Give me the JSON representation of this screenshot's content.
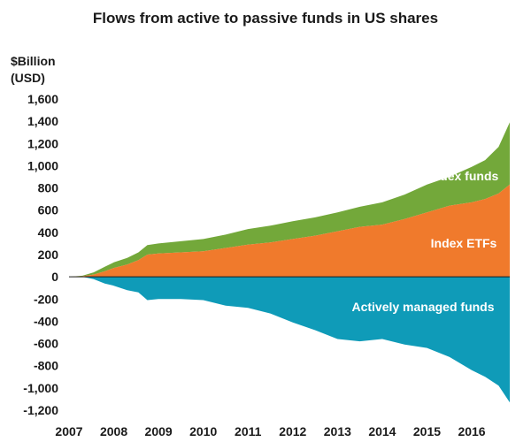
{
  "chart_data": {
    "type": "area",
    "title": "Flows from active to passive funds in US shares",
    "ylabel_lines": [
      "$Billion",
      "(USD)"
    ],
    "xlabel": "",
    "ylim": [
      -1200,
      1600
    ],
    "yticks": [
      1600,
      1400,
      1200,
      1000,
      800,
      600,
      400,
      200,
      0,
      -200,
      -400,
      -600,
      -800,
      -1000,
      -1200
    ],
    "ytick_labels": [
      "1,600",
      "1,400",
      "1,200",
      "1,000",
      "800",
      "600",
      "400",
      "200",
      "0",
      "-200",
      "-400",
      "-600",
      "-800",
      "-1,000",
      "-1,200"
    ],
    "xlim": [
      2007,
      2016.85
    ],
    "xticks": [
      2007,
      2008,
      2009,
      2010,
      2011,
      2012,
      2013,
      2014,
      2015,
      2016
    ],
    "xtick_labels": [
      "2007",
      "2008",
      "2009",
      "2010",
      "2011",
      "2012",
      "2013",
      "2014",
      "2015",
      "2016"
    ],
    "grid": false,
    "x": [
      2007,
      2007.3,
      2007.55,
      2007.8,
      2008,
      2008.3,
      2008.55,
      2008.75,
      2009,
      2009.5,
      2010,
      2010.5,
      2011,
      2011.5,
      2012,
      2012.5,
      2013,
      2013.5,
      2014,
      2014.5,
      2015,
      2015.5,
      2016,
      2016.3,
      2016.6,
      2016.85
    ],
    "series": [
      {
        "name": "Index ETFs",
        "color": "#f07a2c",
        "values": [
          0,
          5,
          20,
          50,
          80,
          110,
          150,
          200,
          210,
          220,
          230,
          260,
          290,
          310,
          340,
          370,
          410,
          450,
          470,
          520,
          580,
          640,
          670,
          700,
          750,
          830
        ]
      },
      {
        "name": "Index funds",
        "color": "#73a83a",
        "values": [
          0,
          5,
          20,
          40,
          50,
          60,
          70,
          85,
          90,
          100,
          110,
          120,
          140,
          150,
          160,
          165,
          170,
          180,
          200,
          220,
          250,
          260,
          320,
          350,
          420,
          560
        ]
      },
      {
        "name": "Actively managed funds",
        "color": "#0f9bb8",
        "values": [
          0,
          0,
          -20,
          -60,
          -80,
          -120,
          -140,
          -210,
          -200,
          -200,
          -210,
          -260,
          -280,
          -330,
          -410,
          -480,
          -560,
          -580,
          -560,
          -610,
          -640,
          -720,
          -840,
          -900,
          -980,
          -1130
        ]
      }
    ]
  }
}
